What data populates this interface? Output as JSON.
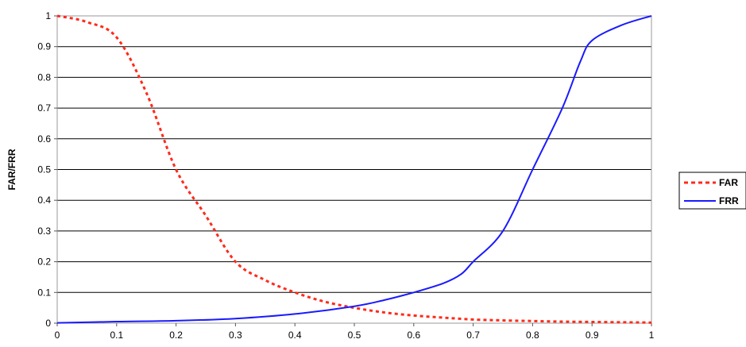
{
  "chart_data": {
    "type": "line",
    "title": "",
    "xlabel": "",
    "ylabel": "FAR/FRR",
    "xlim": [
      0,
      1
    ],
    "ylim": [
      0,
      1
    ],
    "x_ticks": [
      "0",
      "0.1",
      "0.2",
      "0.3",
      "0.4",
      "0.5",
      "0.6",
      "0.7",
      "0.8",
      "0.9",
      "1"
    ],
    "y_ticks": [
      "0",
      "0.1",
      "0.2",
      "0.3",
      "0.4",
      "0.5",
      "0.6",
      "0.7",
      "0.8",
      "0.9",
      "1"
    ],
    "grid": "horizontal",
    "legend_position": "right",
    "series": [
      {
        "name": "FAR",
        "color": "#ff2a1a",
        "style": "dashed",
        "points": [
          [
            0,
            1
          ],
          [
            0.05,
            0.98
          ],
          [
            0.1,
            0.93
          ],
          [
            0.15,
            0.75
          ],
          [
            0.2,
            0.5
          ],
          [
            0.25,
            0.35
          ],
          [
            0.3,
            0.2
          ],
          [
            0.35,
            0.14
          ],
          [
            0.4,
            0.1
          ],
          [
            0.45,
            0.07
          ],
          [
            0.5,
            0.05
          ],
          [
            0.55,
            0.035
          ],
          [
            0.6,
            0.025
          ],
          [
            0.65,
            0.018
          ],
          [
            0.7,
            0.012
          ],
          [
            0.75,
            0.009
          ],
          [
            0.8,
            0.007
          ],
          [
            0.85,
            0.005
          ],
          [
            0.9,
            0.004
          ],
          [
            0.95,
            0.003
          ],
          [
            1,
            0.002
          ]
        ]
      },
      {
        "name": "FRR",
        "color": "#1a1aff",
        "style": "solid",
        "points": [
          [
            0,
            0.001
          ],
          [
            0.1,
            0.005
          ],
          [
            0.2,
            0.008
          ],
          [
            0.3,
            0.015
          ],
          [
            0.4,
            0.03
          ],
          [
            0.5,
            0.055
          ],
          [
            0.55,
            0.075
          ],
          [
            0.6,
            0.1
          ],
          [
            0.65,
            0.13
          ],
          [
            0.68,
            0.16
          ],
          [
            0.7,
            0.2
          ],
          [
            0.75,
            0.3
          ],
          [
            0.8,
            0.5
          ],
          [
            0.85,
            0.7
          ],
          [
            0.88,
            0.85
          ],
          [
            0.9,
            0.92
          ],
          [
            0.95,
            0.97
          ],
          [
            1,
            1
          ]
        ]
      }
    ]
  }
}
